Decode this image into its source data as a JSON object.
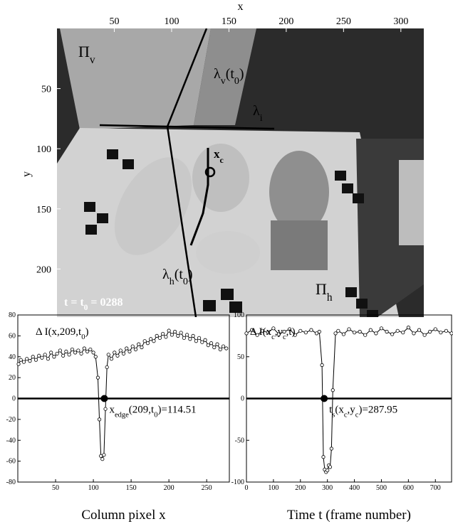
{
  "image_panel": {
    "xlabel": "x",
    "ylabel": "y",
    "xlim": [
      0,
      320
    ],
    "ylim": [
      0,
      240
    ],
    "xticks": [
      50,
      100,
      150,
      200,
      250,
      300
    ],
    "yticks": [
      50,
      100,
      150,
      200
    ],
    "annotations": [
      {
        "parts": [
          "Π",
          "v"
        ]
      },
      {
        "parts": [
          "λ",
          "v",
          "(t",
          "0",
          ")"
        ]
      },
      {
        "parts": [
          "λ",
          "i"
        ]
      },
      {
        "parts": [
          "x",
          "c"
        ]
      },
      {
        "parts": [
          "λ",
          "h",
          "(t",
          "0",
          ")"
        ]
      },
      {
        "parts": [
          "Π",
          "h"
        ]
      },
      {
        "parts": [
          "t = t",
          "0",
          " = 0288"
        ]
      }
    ]
  },
  "chart_data": [
    {
      "type": "line",
      "xlabel": "Column pixel x",
      "annotation": {
        "parts": [
          "Δ I(x,209,t",
          "0",
          ")"
        ]
      },
      "marker": {
        "x": 114.51,
        "y": 0,
        "label": {
          "parts": [
            "x",
            "edge",
            "(209,t",
            "0",
            ")=114.51"
          ]
        }
      },
      "reference_line": 0,
      "xlim": [
        0,
        280
      ],
      "ylim": [
        -80,
        80
      ],
      "xticks": [
        50,
        100,
        150,
        200,
        250
      ],
      "yticks": [
        -80,
        -60,
        -40,
        -20,
        0,
        20,
        40,
        60,
        80
      ],
      "color": "#000000",
      "x": [
        1,
        4,
        8,
        12,
        16,
        20,
        24,
        28,
        32,
        36,
        40,
        44,
        48,
        52,
        56,
        60,
        64,
        68,
        72,
        76,
        80,
        84,
        88,
        92,
        96,
        100,
        103,
        106,
        108,
        110,
        112,
        114,
        116,
        118,
        120,
        124,
        128,
        132,
        136,
        140,
        144,
        148,
        152,
        156,
        160,
        164,
        168,
        172,
        176,
        180,
        184,
        188,
        192,
        196,
        200,
        204,
        208,
        212,
        216,
        220,
        224,
        228,
        232,
        236,
        240,
        244,
        248,
        252,
        256,
        260,
        264,
        268,
        272,
        276
      ],
      "values": [
        33,
        37,
        35,
        38,
        36,
        40,
        37,
        41,
        39,
        42,
        38,
        44,
        40,
        43,
        46,
        41,
        45,
        42,
        47,
        44,
        46,
        43,
        48,
        45,
        47,
        44,
        40,
        20,
        -20,
        -55,
        -58,
        -54,
        -10,
        30,
        42,
        38,
        44,
        41,
        46,
        43,
        48,
        45,
        50,
        47,
        52,
        49,
        55,
        53,
        57,
        55,
        60,
        58,
        62,
        59,
        65,
        61,
        64,
        60,
        63,
        58,
        61,
        57,
        60,
        55,
        58,
        54,
        56,
        51,
        53,
        49,
        52,
        47,
        50,
        48
      ]
    },
    {
      "type": "line",
      "xlabel": "Time t (frame number)",
      "annotation": {
        "parts": [
          "Δ I(x",
          "c",
          ",y",
          "c",
          ",t)"
        ]
      },
      "marker": {
        "x": 287.95,
        "y": 0,
        "label": {
          "parts": [
            "t",
            "s",
            "(x",
            "c",
            ",y",
            "c",
            ")=287.95"
          ]
        }
      },
      "reference_line": 0,
      "xlim": [
        0,
        760
      ],
      "ylim": [
        -100,
        100
      ],
      "xticks": [
        0,
        100,
        200,
        300,
        400,
        500,
        600,
        700
      ],
      "yticks": [
        -100,
        -50,
        0,
        50,
        100
      ],
      "color": "#000000",
      "x": [
        0,
        20,
        40,
        60,
        80,
        100,
        120,
        140,
        160,
        180,
        200,
        220,
        240,
        260,
        270,
        280,
        285,
        290,
        295,
        300,
        305,
        310,
        315,
        320,
        330,
        340,
        360,
        380,
        400,
        420,
        440,
        460,
        480,
        500,
        520,
        540,
        560,
        580,
        600,
        620,
        640,
        660,
        680,
        700,
        720,
        740,
        760
      ],
      "values": [
        78,
        82,
        76,
        81,
        79,
        84,
        77,
        80,
        83,
        76,
        81,
        79,
        82,
        78,
        80,
        40,
        -70,
        -85,
        -88,
        -86,
        -80,
        -82,
        -60,
        10,
        78,
        81,
        77,
        83,
        79,
        80,
        76,
        82,
        78,
        84,
        80,
        77,
        81,
        79,
        85,
        78,
        82,
        76,
        80,
        83,
        79,
        81,
        78
      ]
    }
  ]
}
